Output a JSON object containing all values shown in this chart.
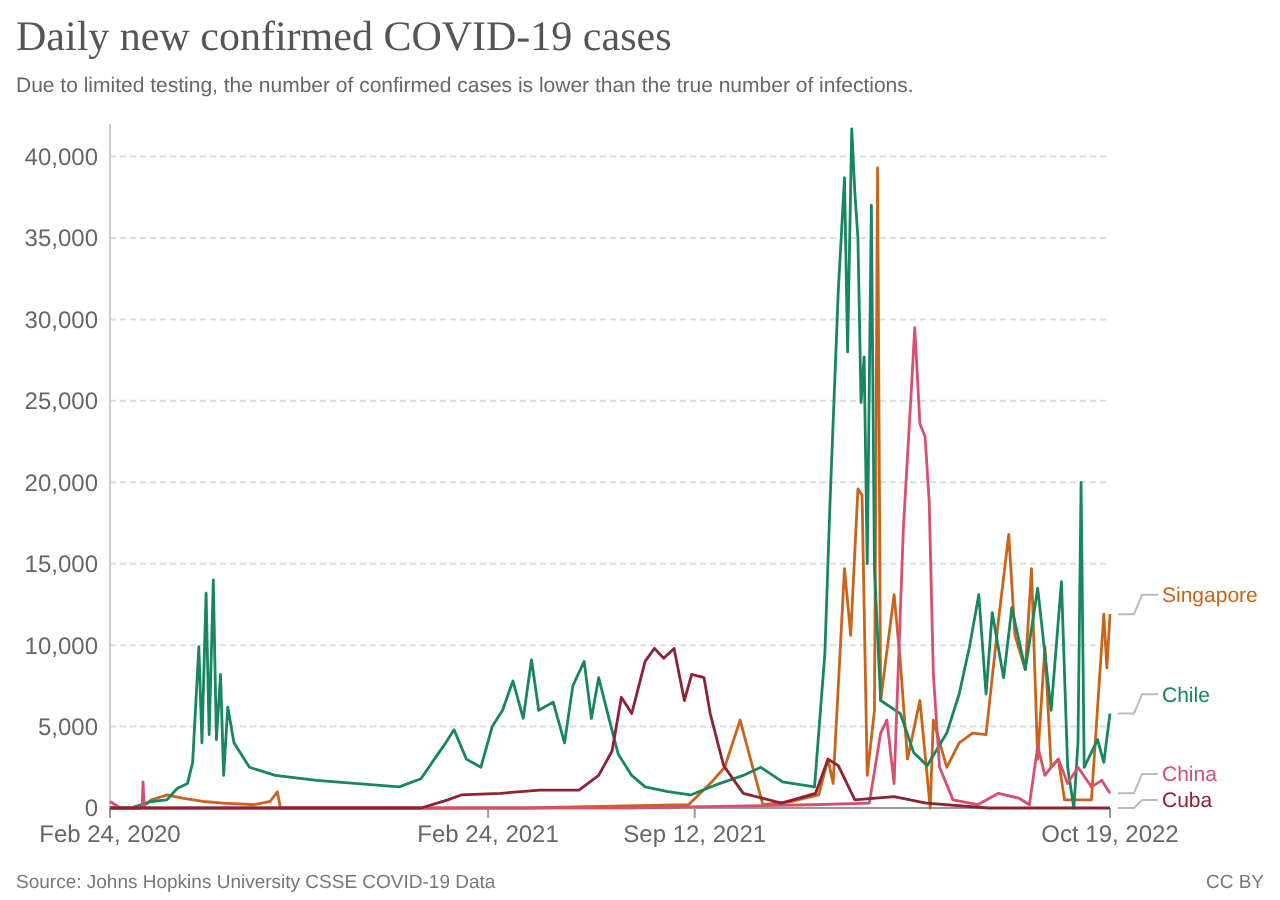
{
  "chart_data": {
    "type": "line",
    "title": "Daily new confirmed COVID-19 cases",
    "subtitle": "Due to limited testing, the number of confirmed cases is lower than the true number of infections.",
    "annotations": [
      "Source: Johns Hopkins University CSSE COVID-19 Data",
      "CC BY"
    ],
    "xlim": [
      "2020-02-24",
      "2022-10-19"
    ],
    "xticks": [
      {
        "value": "2020-02-24",
        "label": "Feb 24, 2020"
      },
      {
        "value": "2021-02-24",
        "label": "Feb 24, 2021"
      },
      {
        "value": "2021-09-12",
        "label": "Sep 12, 2021"
      },
      {
        "value": "2022-10-19",
        "label": "Oct 19, 2022"
      }
    ],
    "ylim": [
      0,
      42000
    ],
    "yticks": [
      0,
      {
        "value": 5000,
        "label": "5,000"
      },
      {
        "value": 10000,
        "label": "10,000"
      },
      {
        "value": 15000,
        "label": "15,000"
      },
      {
        "value": 20000,
        "label": "20,000"
      },
      {
        "value": 25000,
        "label": "25,000"
      },
      {
        "value": 30000,
        "label": "30,000"
      },
      {
        "value": 35000,
        "label": "35,000"
      },
      {
        "value": 40000,
        "label": "40,000"
      }
    ],
    "grid": "y",
    "legend": "right",
    "marker": "none",
    "line_style": "solid",
    "series": [
      {
        "name": "Singapore",
        "color": "#c8651b",
        "x": [
          "2020-02-24",
          "2020-03-25",
          "2020-04-04",
          "2020-04-19",
          "2020-05-04",
          "2020-05-24",
          "2020-06-13",
          "2020-07-13",
          "2020-07-28",
          "2020-08-04",
          "2020-08-07",
          "2020-09-11",
          "2021-03-30",
          "2021-09-06",
          "2021-09-27",
          "2021-10-11",
          "2021-10-26",
          "2021-11-05",
          "2021-11-17",
          "2021-12-15",
          "2022-01-10",
          "2022-01-19",
          "2022-01-24",
          "2022-02-04",
          "2022-02-10",
          "2022-02-17",
          "2022-02-21",
          "2022-02-26",
          "2022-03-05",
          "2022-03-08",
          "2022-03-11",
          "2022-03-24",
          "2022-03-30",
          "2022-04-06",
          "2022-04-18",
          "2022-04-28",
          "2022-05-01",
          "2022-05-14",
          "2022-05-26",
          "2022-06-08",
          "2022-06-21",
          "2022-07-03",
          "2022-07-13",
          "2022-07-19",
          "2022-07-29",
          "2022-08-04",
          "2022-08-10",
          "2022-08-17",
          "2022-08-23",
          "2022-08-30",
          "2022-09-05",
          "2022-10-01",
          "2022-10-07",
          "2022-10-13",
          "2022-10-16",
          "2022-10-19"
        ],
        "values": [
          0,
          0,
          500,
          800,
          600,
          400,
          300,
          200,
          400,
          1000,
          0,
          0,
          0,
          200,
          1500,
          2500,
          5400,
          3000,
          200,
          400,
          800,
          3000,
          1500,
          14700,
          10600,
          19600,
          19200,
          2000,
          6000,
          39300,
          6600,
          13100,
          9000,
          3000,
          6600,
          0,
          5400,
          2500,
          4000,
          4600,
          4500,
          11500,
          16800,
          10600,
          8500,
          14700,
          3000,
          9900,
          2500,
          3000,
          500,
          500,
          6200,
          11900,
          8600,
          11900
        ]
      },
      {
        "name": "Chile",
        "color": "#18865f",
        "x": [
          "2020-02-24",
          "2020-03-15",
          "2020-04-04",
          "2020-04-19",
          "2020-04-29",
          "2020-05-09",
          "2020-05-14",
          "2020-05-20",
          "2020-05-23",
          "2020-05-27",
          "2020-05-30",
          "2020-06-03",
          "2020-06-06",
          "2020-06-10",
          "2020-06-13",
          "2020-06-17",
          "2020-06-23",
          "2020-07-08",
          "2020-08-02",
          "2020-09-11",
          "2020-10-21",
          "2020-11-30",
          "2020-12-21",
          "2021-01-03",
          "2021-01-14",
          "2021-01-22",
          "2021-02-03",
          "2021-02-17",
          "2021-02-28",
          "2021-03-10",
          "2021-03-20",
          "2021-03-30",
          "2021-04-07",
          "2021-04-14",
          "2021-04-28",
          "2021-05-09",
          "2021-05-17",
          "2021-05-28",
          "2021-06-04",
          "2021-06-11",
          "2021-06-23",
          "2021-06-30",
          "2021-07-13",
          "2021-07-26",
          "2021-08-17",
          "2021-09-08",
          "2021-10-06",
          "2021-10-29",
          "2021-11-15",
          "2021-12-06",
          "2022-01-06",
          "2022-01-16",
          "2022-01-21",
          "2022-01-29",
          "2022-02-04",
          "2022-02-07",
          "2022-02-11",
          "2022-02-14",
          "2022-02-17",
          "2022-02-20",
          "2022-02-23",
          "2022-02-26",
          "2022-03-02",
          "2022-03-05",
          "2022-03-11",
          "2022-03-30",
          "2022-04-12",
          "2022-04-25",
          "2022-05-14",
          "2022-05-26",
          "2022-06-05",
          "2022-06-14",
          "2022-06-21",
          "2022-06-27",
          "2022-07-08",
          "2022-07-16",
          "2022-07-29",
          "2022-08-10",
          "2022-08-23",
          "2022-09-02",
          "2022-09-08",
          "2022-09-14",
          "2022-09-18",
          "2022-09-21",
          "2022-09-24",
          "2022-10-07",
          "2022-10-13",
          "2022-10-19"
        ],
        "values": [
          0,
          0,
          400,
          500,
          1200,
          1500,
          2800,
          9900,
          4000,
          13200,
          4500,
          14000,
          4200,
          8200,
          2000,
          6200,
          4000,
          2500,
          2000,
          1700,
          1500,
          1300,
          1800,
          3000,
          4000,
          4800,
          3000,
          2500,
          5000,
          6000,
          7800,
          5500,
          9100,
          6000,
          6500,
          4000,
          7500,
          9000,
          5500,
          8000,
          5000,
          3300,
          2000,
          1300,
          1000,
          800,
          1500,
          2000,
          2500,
          1600,
          1300,
          9500,
          18800,
          31800,
          38700,
          28000,
          41700,
          37800,
          35000,
          24900,
          27700,
          15000,
          37000,
          14700,
          6600,
          5800,
          3400,
          2600,
          4600,
          7000,
          9900,
          13100,
          7000,
          12000,
          8000,
          12300,
          8500,
          13500,
          6000,
          13900,
          2500,
          0,
          4000,
          20000,
          2500,
          4200,
          2800,
          5800
        ]
      },
      {
        "name": "China",
        "color": "#d6506f",
        "x": [
          "2020-02-24",
          "2020-03-05",
          "2020-03-26",
          "2020-03-27",
          "2020-03-28",
          "2020-06-03",
          "2020-12-20",
          "2021-07-08",
          "2022-01-04",
          "2022-02-28",
          "2022-03-11",
          "2022-03-17",
          "2022-03-24",
          "2022-04-02",
          "2022-04-09",
          "2022-04-13",
          "2022-04-18",
          "2022-04-23",
          "2022-04-27",
          "2022-05-01",
          "2022-05-07",
          "2022-05-20",
          "2022-06-13",
          "2022-07-03",
          "2022-07-23",
          "2022-08-02",
          "2022-08-10",
          "2022-08-17",
          "2022-08-23",
          "2022-08-30",
          "2022-09-08",
          "2022-09-18",
          "2022-10-01",
          "2022-10-11",
          "2022-10-19"
        ],
        "values": [
          400,
          0,
          0,
          1600,
          0,
          0,
          0,
          0,
          200,
          300,
          4600,
          5400,
          1500,
          17200,
          24900,
          29500,
          23600,
          22800,
          18800,
          8200,
          2500,
          500,
          200,
          900,
          600,
          200,
          3800,
          2000,
          2500,
          3000,
          1500,
          2500,
          1300,
          1700,
          900
        ]
      },
      {
        "name": "Cuba",
        "color": "#8c2335",
        "x": [
          "2020-02-24",
          "2020-10-31",
          "2020-12-21",
          "2021-01-16",
          "2021-01-29",
          "2021-03-08",
          "2021-04-15",
          "2021-05-23",
          "2021-06-11",
          "2021-06-24",
          "2021-07-03",
          "2021-07-13",
          "2021-07-26",
          "2021-08-04",
          "2021-08-13",
          "2021-08-23",
          "2021-09-02",
          "2021-09-09",
          "2021-09-21",
          "2021-09-27",
          "2021-10-10",
          "2021-10-29",
          "2021-12-05",
          "2022-01-07",
          "2022-01-19",
          "2022-01-29",
          "2022-02-14",
          "2022-03-24",
          "2022-04-24",
          "2022-06-23",
          "2022-10-19"
        ],
        "values": [
          0,
          0,
          0,
          500,
          800,
          900,
          1100,
          1100,
          2000,
          3500,
          6800,
          5800,
          9000,
          9800,
          9200,
          9800,
          6600,
          8200,
          8000,
          5800,
          2600,
          900,
          300,
          900,
          3000,
          2600,
          500,
          700,
          300,
          0,
          0
        ]
      }
    ]
  }
}
